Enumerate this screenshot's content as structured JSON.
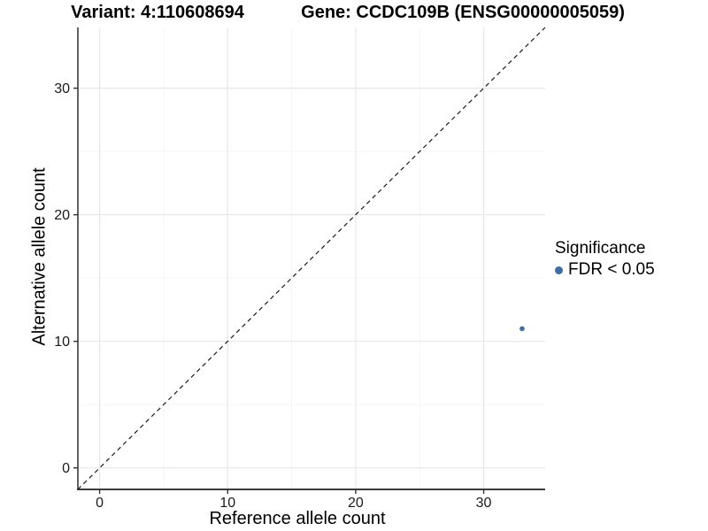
{
  "chart_data": {
    "type": "scatter",
    "titles": {
      "left": "Variant: 4:110608694",
      "right": "Gene: CCDC109B (ENSG00000005059)"
    },
    "xlabel": "Reference allele count",
    "ylabel": "Alternative allele count",
    "xlim": [
      -1.7,
      34.8
    ],
    "ylim": [
      -1.7,
      34.8
    ],
    "x_ticks": [
      0,
      10,
      20,
      30
    ],
    "x_minor_ticks": [
      5,
      15,
      25
    ],
    "y_ticks": [
      0,
      10,
      20,
      30
    ],
    "y_minor_ticks": [
      5,
      15,
      25
    ],
    "grid": "on",
    "legend": {
      "position": "right",
      "title": "Significance",
      "items": [
        {
          "label": "FDR < 0.05",
          "color": "#3d6fa5"
        }
      ]
    },
    "series": [
      {
        "name": "FDR < 0.05",
        "color": "#3d6fa5",
        "points": [
          {
            "x": 33,
            "y": 11
          }
        ]
      }
    ],
    "identity_line": {
      "style": "dashed",
      "slope": 1,
      "intercept": 0,
      "color": "#1a1a1a"
    }
  },
  "style": {
    "background": "#ffffff",
    "grid_major": "#e7e7e7",
    "grid_minor": "#f4f4f4",
    "axis_line": "#3c3c3c",
    "tick_mark": "#333333",
    "tick_label": "#1a1a1a",
    "dashed_line": "#1a1a1a"
  }
}
